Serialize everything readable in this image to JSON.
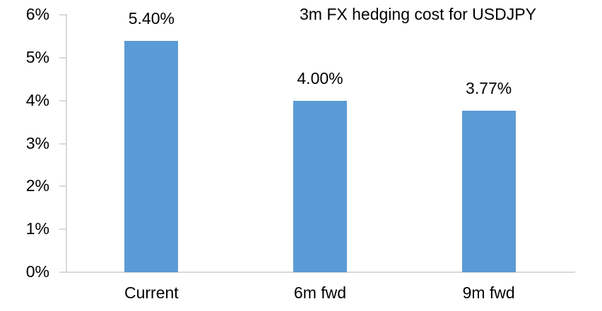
{
  "chart_data": {
    "type": "bar",
    "title": "3m FX hedging cost for USDJPY",
    "categories": [
      "Current",
      "6m fwd",
      "9m fwd"
    ],
    "values": [
      5.4,
      4.0,
      3.77
    ],
    "data_labels": [
      "5.40%",
      "4.00%",
      "3.77%"
    ],
    "ytick_labels": [
      "0%",
      "1%",
      "2%",
      "3%",
      "4%",
      "5%",
      "6%"
    ],
    "ytick_values": [
      0,
      1,
      2,
      3,
      4,
      5,
      6
    ],
    "ylim": [
      0,
      6
    ],
    "xlabel": "",
    "ylabel": "",
    "grid": false,
    "legend": "none",
    "colors": {
      "bar": "#5B9BD5",
      "axis_line": "#D9D9D9",
      "text": "#000000",
      "background": "#FFFFFF"
    }
  }
}
